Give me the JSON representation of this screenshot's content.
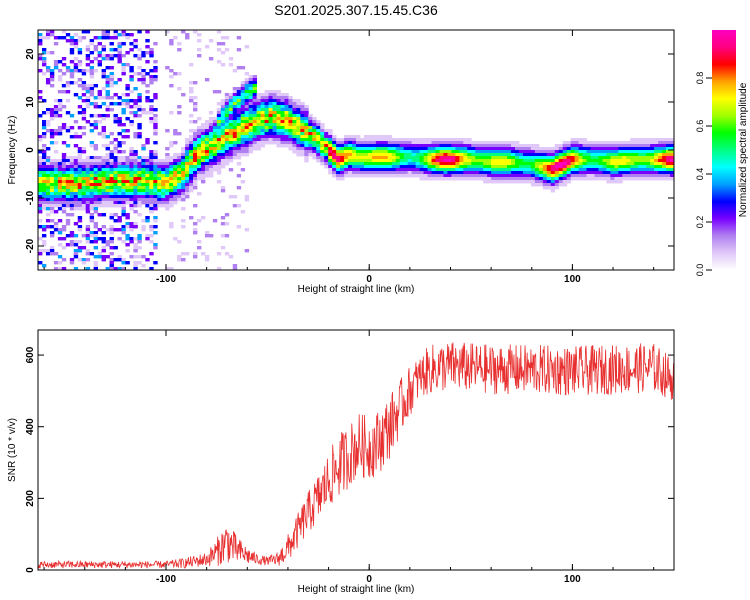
{
  "title": "S201.2025.307.15.45.C36",
  "chart_data": [
    {
      "type": "heatmap",
      "xlabel": "Height of straight line (km)",
      "ylabel": "Frequency (Hz)",
      "xlim": [
        -163,
        150
      ],
      "ylim": [
        -25,
        25
      ],
      "x_ticks": [
        -100,
        0,
        100
      ],
      "y_ticks": [
        -20,
        -10,
        0,
        10,
        20
      ],
      "colorbar": {
        "label": "Normalized spectral amplitude",
        "range": [
          0,
          1
        ],
        "ticks": [
          0.0,
          0.2,
          0.4,
          0.6,
          0.8
        ],
        "tick_labels": [
          "0.0",
          "0.2",
          "0.4",
          "0.6",
          "0.8"
        ],
        "colors": [
          "#ffffff",
          "#e0c8f8",
          "#b080f0",
          "#7800ff",
          "#0000ff",
          "#00a0ff",
          "#00ffff",
          "#00ff80",
          "#00ff00",
          "#a0ff00",
          "#ffff00",
          "#ffa000",
          "#ff0000",
          "#ff0080",
          "#ff00c0"
        ]
      },
      "ridge": {
        "x": [
          -163,
          -145,
          -125,
          -110,
          -100,
          -92,
          -85,
          -75,
          -65,
          -55,
          -48,
          -40,
          -32,
          -25,
          -20,
          -15,
          -10,
          -5,
          0,
          10,
          20,
          30,
          40,
          50,
          60,
          70,
          80,
          85,
          90,
          95,
          100,
          110,
          120,
          130,
          140,
          150
        ],
        "y": [
          -7,
          -7,
          -6.5,
          -6.5,
          -7,
          -5,
          -1,
          1.5,
          4,
          6,
          7,
          6,
          4,
          2,
          0,
          -2,
          -1,
          -1.5,
          -1.5,
          -1.5,
          -1.5,
          -2,
          -2,
          -2,
          -2.5,
          -2.5,
          -3,
          -3.5,
          -4,
          -3,
          -2,
          -2,
          -2.5,
          -2,
          -2,
          -2
        ]
      },
      "branch": {
        "x": [
          -75,
          -70,
          -65,
          -60,
          -55
        ],
        "y": [
          5,
          8,
          10,
          12,
          13
        ]
      },
      "noise_region_x": [
        -163,
        -105
      ]
    },
    {
      "type": "line",
      "xlabel": "Height of straight line (km)",
      "ylabel": "SNR (10 * v/v)",
      "xlim": [
        -163,
        150
      ],
      "ylim": [
        0,
        670
      ],
      "x_ticks": [
        -100,
        0,
        100
      ],
      "y_ticks": [
        0,
        200,
        400,
        600
      ],
      "series": [
        {
          "name": "SNR",
          "color": "#e83030",
          "anchors_x": [
            -163,
            -140,
            -120,
            -100,
            -90,
            -80,
            -75,
            -70,
            -65,
            -60,
            -55,
            -50,
            -45,
            -40,
            -35,
            -30,
            -25,
            -20,
            -15,
            -10,
            -5,
            0,
            5,
            10,
            15,
            20,
            25,
            30,
            40,
            60,
            80,
            100,
            120,
            140,
            150
          ],
          "anchors_y": [
            15,
            15,
            15,
            15,
            20,
            30,
            50,
            80,
            55,
            40,
            30,
            25,
            30,
            60,
            110,
            160,
            200,
            250,
            290,
            320,
            350,
            340,
            360,
            400,
            450,
            500,
            540,
            560,
            570,
            560,
            560,
            555,
            560,
            565,
            530
          ],
          "noise_amplitude": [
            10,
            10,
            10,
            10,
            15,
            20,
            40,
            60,
            40,
            25,
            15,
            12,
            20,
            40,
            50,
            60,
            70,
            80,
            90,
            90,
            90,
            90,
            90,
            90,
            80,
            70,
            60,
            70,
            70,
            70,
            70,
            70,
            70,
            70,
            60
          ]
        }
      ]
    }
  ]
}
